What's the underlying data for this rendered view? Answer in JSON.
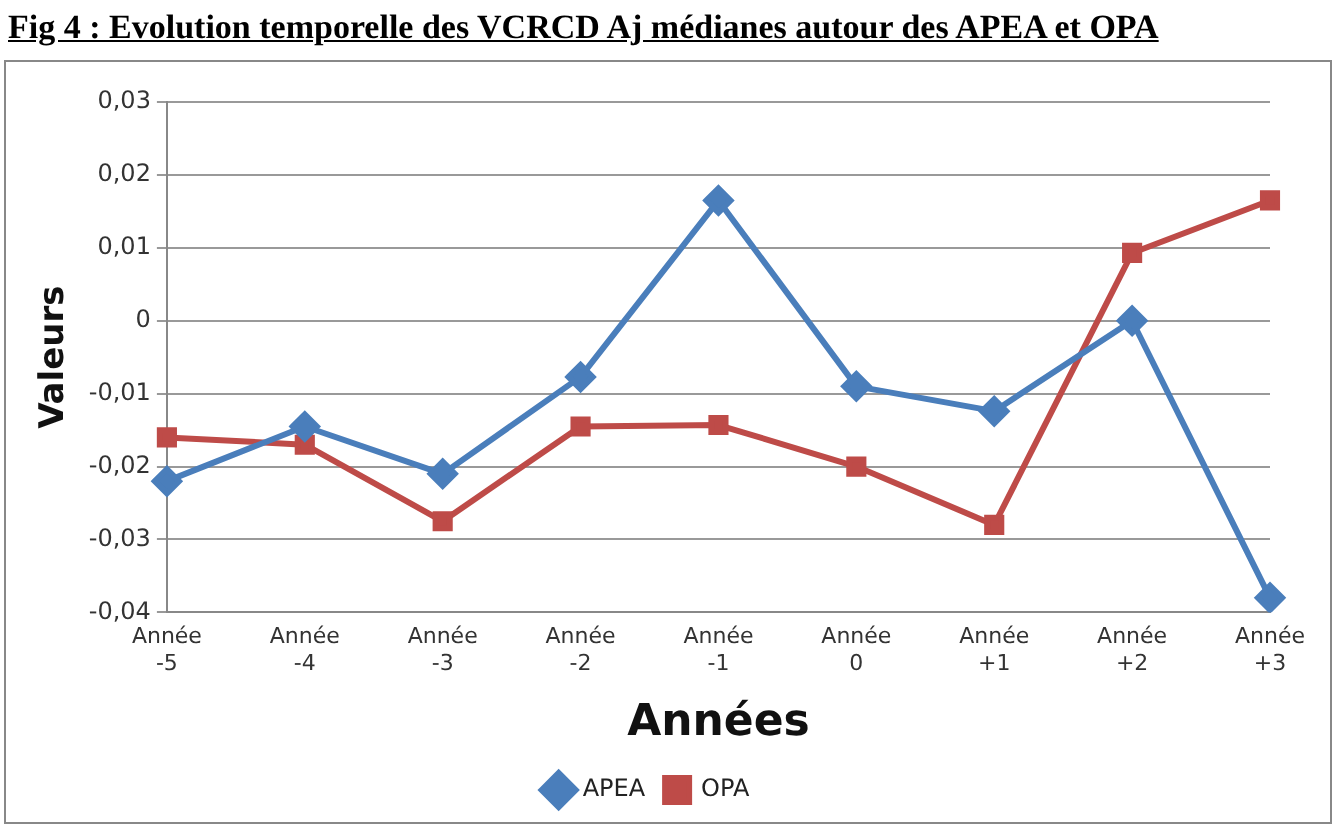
{
  "chart_data": {
    "type": "line",
    "title": "Fig 4 : Evolution temporelle des VCRCD Aj médianes autour des APEA et OPA",
    "xlabel": "Années",
    "ylabel": "Valeurs",
    "categories": [
      "Année\n-5",
      "Année\n-4",
      "Année\n-3",
      "Année\n-2",
      "Année\n-1",
      "Année\n0",
      "Année\n+1",
      "Année\n+2",
      "Année\n+3"
    ],
    "series": [
      {
        "name": "APEA",
        "color": "#4a7ebb",
        "marker": "diamond",
        "values": [
          -0.022,
          -0.0145,
          -0.021,
          -0.0077,
          0.0165,
          -0.009,
          -0.0124,
          0,
          -0.038
        ]
      },
      {
        "name": "OPA",
        "color": "#be4b48",
        "marker": "square",
        "values": [
          -0.016,
          -0.017,
          -0.0275,
          -0.0145,
          -0.0143,
          -0.02,
          -0.028,
          0.0093,
          0.0165
        ]
      }
    ],
    "ylim": [
      -0.04,
      0.03
    ],
    "yticks": [
      {
        "value": -0.04,
        "label": "-0,04"
      },
      {
        "value": -0.03,
        "label": "-0,03"
      },
      {
        "value": -0.02,
        "label": "-0,02"
      },
      {
        "value": -0.01,
        "label": "-0,01"
      },
      0,
      {
        "value": 0.01,
        "label": "0,01"
      },
      {
        "value": 0.02,
        "label": "0,02"
      },
      {
        "value": 0.03,
        "label": "0,03"
      }
    ],
    "grid": "y",
    "legend": "bottom",
    "line_style": "solid"
  }
}
